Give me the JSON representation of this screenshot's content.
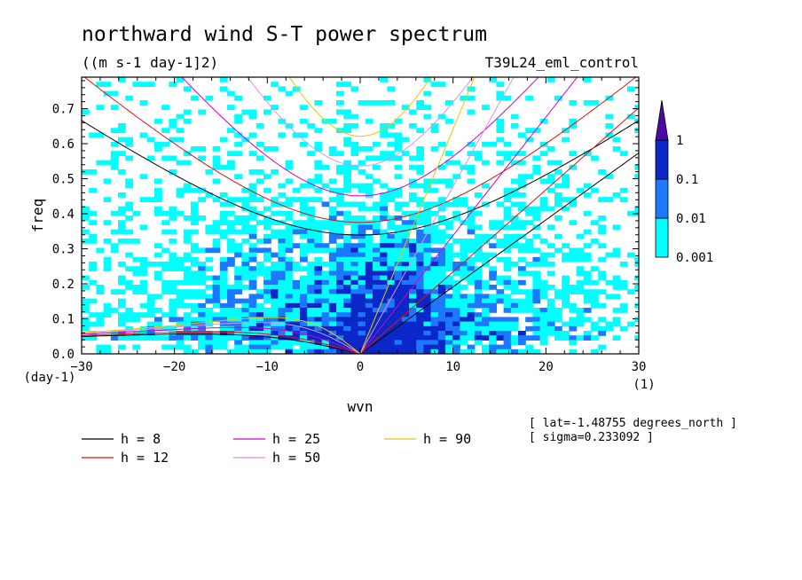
{
  "chart_data": {
    "type": "heatmap",
    "title": "northward wind S-T power spectrum",
    "subtitle": "((m s-1 day-1]2)",
    "run_label": "T39L24_eml_control",
    "xlabel": "wvn",
    "ylabel": "freq",
    "x_unit": "(1)",
    "y_unit": "(day-1)",
    "xlim": [
      -30,
      30
    ],
    "ylim": [
      0.0,
      0.79
    ],
    "x_ticks": [
      "-30",
      "-20",
      "-10",
      "0",
      "10",
      "20",
      "30"
    ],
    "x_tick_values": [
      -30,
      -20,
      -10,
      0,
      10,
      20,
      30
    ],
    "y_ticks": [
      "0.0",
      "0.1",
      "0.2",
      "0.3",
      "0.4",
      "0.5",
      "0.6",
      "0.7"
    ],
    "y_tick_values": [
      0.0,
      0.1,
      0.2,
      0.3,
      0.4,
      0.5,
      0.6,
      0.7
    ],
    "colorbar": {
      "levels": [
        "1",
        "0.1",
        "0.01",
        "0.001"
      ],
      "colors": [
        "#00ffff",
        "#1e78ff",
        "#0a28c8",
        "#4b0aa0"
      ]
    },
    "dispersion_curves": [
      {
        "name": "h =  8",
        "h": 8,
        "color": "#000000"
      },
      {
        "name": "h = 12",
        "h": 12,
        "color": "#e01010"
      },
      {
        "name": "h = 25",
        "h": 25,
        "color": "#d000c8"
      },
      {
        "name": "h = 50",
        "h": 50,
        "color": "#e090e8"
      },
      {
        "name": "h = 90",
        "h": 90,
        "color": "#e8c800"
      }
    ],
    "info": [
      "[ lat=-1.48755 degrees_north ]",
      "[ sigma=0.233092 ]"
    ]
  }
}
